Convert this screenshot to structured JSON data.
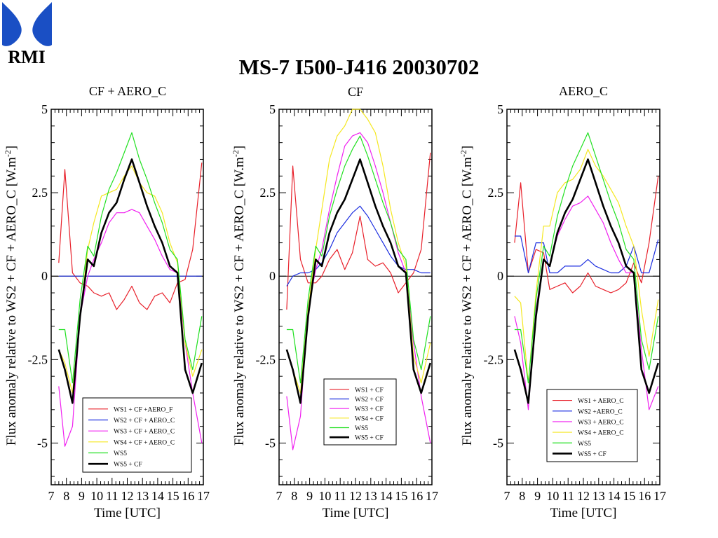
{
  "logo": {
    "text": "RMI",
    "color": "#1a4fc4"
  },
  "slide_title": "MS-7 I500-J416 20030702",
  "chart_data": [
    {
      "type": "line",
      "title": "CF + AERO_C",
      "xlabel": "Time [UTC]",
      "ylabel": "Flux anomaly relative to WS2 + CF + AERO_C [W.m",
      "ylabel_sup": "-2",
      "ylabel_close": "]",
      "xlim": [
        7,
        17
      ],
      "ylim": [
        -6.25,
        5
      ],
      "xticks": [
        7,
        8,
        9,
        10,
        11,
        12,
        13,
        14,
        15,
        16,
        17
      ],
      "yticks": [
        -5,
        -2.5,
        0,
        2.5,
        5
      ],
      "ytick_labels": [
        "-5",
        "-2.5",
        "0",
        "2.5",
        "5"
      ],
      "legend_position": "bottom",
      "x": [
        7.5,
        7.9,
        8.4,
        8.9,
        9.4,
        9.8,
        10.3,
        10.8,
        11.3,
        11.8,
        12.3,
        12.8,
        13.3,
        13.8,
        14.3,
        14.8,
        15.3,
        15.8,
        16.3,
        16.9
      ],
      "series": [
        {
          "name": "WS1 + CF +AERO_F",
          "color": "#e8202a",
          "width": 1.2,
          "values": [
            0.4,
            3.2,
            0.1,
            -0.2,
            -0.3,
            -0.5,
            -0.6,
            -0.5,
            -1.0,
            -0.7,
            -0.3,
            -0.8,
            -1.0,
            -0.6,
            -0.5,
            -0.8,
            -0.2,
            -0.1,
            0.8,
            3.4
          ]
        },
        {
          "name": "WS2 + CF + AERO_C",
          "color": "#1c2ee0",
          "width": 1.2,
          "values": [
            0,
            0,
            0,
            0,
            0,
            0,
            0,
            0,
            0,
            0,
            0,
            0,
            0,
            0,
            0,
            0,
            0,
            0,
            0,
            0
          ]
        },
        {
          "name": "WS3 + CF + AERO_C",
          "color": "#f020f0",
          "width": 1.2,
          "values": [
            -3.3,
            -5.1,
            -4.5,
            -1.2,
            0.0,
            0.5,
            1.0,
            1.6,
            1.9,
            1.9,
            2.0,
            1.9,
            1.5,
            1.1,
            0.6,
            0.2,
            0.1,
            -2.0,
            -3.5,
            -5.0
          ]
        },
        {
          "name": "WS4 + CF + AERO_C",
          "color": "#f5e820",
          "width": 1.2,
          "values": [
            -2.2,
            -2.6,
            -3.5,
            -1.2,
            0.8,
            1.6,
            2.4,
            2.5,
            2.6,
            3.0,
            3.3,
            2.8,
            2.5,
            2.4,
            1.9,
            1.0,
            0.4,
            -2.0,
            -3.0,
            -2.2
          ]
        },
        {
          "name": "WS5",
          "color": "#20e020",
          "width": 1.2,
          "values": [
            -1.6,
            -1.6,
            -3.2,
            -0.7,
            0.9,
            0.6,
            1.8,
            2.6,
            3.1,
            3.7,
            4.3,
            3.5,
            2.9,
            2.2,
            1.6,
            0.8,
            0.5,
            -1.9,
            -2.8,
            -1.2
          ]
        },
        {
          "name": "WS5 + CF",
          "color": "#000000",
          "width": 2.6,
          "values": [
            -2.2,
            -2.8,
            -3.8,
            -1.2,
            0.5,
            0.3,
            1.3,
            1.9,
            2.2,
            2.9,
            3.5,
            2.8,
            2.1,
            1.5,
            1.0,
            0.3,
            0.1,
            -2.8,
            -3.5,
            -2.6
          ]
        }
      ]
    },
    {
      "type": "line",
      "title": "CF",
      "xlabel": "Time [UTC]",
      "ylabel": "Flux anomaly relative to WS2 + CF + AERO_C [W.m",
      "ylabel_sup": "-2",
      "ylabel_close": "]",
      "xlim": [
        7,
        17
      ],
      "ylim": [
        -6.25,
        5
      ],
      "xticks": [
        7,
        8,
        9,
        10,
        11,
        12,
        13,
        14,
        15,
        16,
        17
      ],
      "yticks": [
        -5,
        -2.5,
        0,
        2.5,
        5
      ],
      "ytick_labels": [
        "-5",
        "-2.5",
        "0",
        "2.5",
        "5"
      ],
      "legend_position": "bottom-right",
      "x": [
        7.5,
        7.9,
        8.4,
        8.9,
        9.4,
        9.8,
        10.3,
        10.8,
        11.3,
        11.8,
        12.3,
        12.8,
        13.3,
        13.8,
        14.3,
        14.8,
        15.3,
        15.8,
        16.3,
        16.9
      ],
      "series": [
        {
          "name": "WS1 + CF",
          "color": "#e8202a",
          "width": 1.2,
          "values": [
            -1.0,
            3.3,
            0.5,
            -0.2,
            -0.2,
            0.0,
            0.5,
            0.8,
            0.2,
            0.7,
            1.8,
            0.5,
            0.3,
            0.4,
            0.1,
            -0.5,
            -0.2,
            0.1,
            0.8,
            3.7
          ]
        },
        {
          "name": "WS2 + CF",
          "color": "#1c2ee0",
          "width": 1.2,
          "values": [
            -0.3,
            0.0,
            0.1,
            0.1,
            0.2,
            0.4,
            0.8,
            1.3,
            1.6,
            1.9,
            2.1,
            1.8,
            1.4,
            1.0,
            0.6,
            0.3,
            0.2,
            0.2,
            0.1,
            0.1
          ]
        },
        {
          "name": "WS3 + CF",
          "color": "#f020f0",
          "width": 1.2,
          "values": [
            -3.6,
            -5.2,
            -4.2,
            -1.0,
            0.2,
            0.8,
            2.0,
            3.0,
            3.9,
            4.2,
            4.3,
            4.0,
            3.3,
            2.5,
            1.6,
            0.7,
            0.1,
            -2.0,
            -3.6,
            -5.0
          ]
        },
        {
          "name": "WS4 + CF",
          "color": "#f5e820",
          "width": 1.2,
          "values": [
            -2.2,
            -2.8,
            -3.5,
            -1.0,
            0.8,
            2.0,
            3.5,
            4.2,
            4.5,
            5.0,
            5.0,
            4.7,
            4.3,
            3.3,
            2.0,
            1.0,
            0.3,
            -2.4,
            -3.2,
            -2.0
          ]
        },
        {
          "name": "WS5",
          "color": "#20e020",
          "width": 1.2,
          "values": [
            -1.6,
            -1.6,
            -3.2,
            -0.7,
            0.9,
            0.6,
            1.8,
            2.6,
            3.3,
            3.8,
            4.2,
            3.6,
            2.9,
            2.2,
            1.6,
            0.8,
            0.5,
            -1.9,
            -2.8,
            -1.2
          ]
        },
        {
          "name": "WS5 + CF",
          "color": "#000000",
          "width": 2.6,
          "values": [
            -2.2,
            -2.8,
            -3.8,
            -1.2,
            0.5,
            0.3,
            1.3,
            1.9,
            2.3,
            2.9,
            3.5,
            2.8,
            2.1,
            1.5,
            1.0,
            0.3,
            0.1,
            -2.8,
            -3.5,
            -2.6
          ]
        }
      ]
    },
    {
      "type": "line",
      "title": "AERO_C",
      "xlabel": "Time [UTC]",
      "ylabel": "Flux anomaly relative to WS2 + CF + AERO_C [W.m",
      "ylabel_sup": "-2",
      "ylabel_close": "]",
      "xlim": [
        7,
        17
      ],
      "ylim": [
        -6.25,
        5
      ],
      "xticks": [
        7,
        8,
        9,
        10,
        11,
        12,
        13,
        14,
        15,
        16,
        17
      ],
      "yticks": [
        -5,
        -2.5,
        0,
        2.5,
        5
      ],
      "ytick_labels": [
        "-5",
        "-2.5",
        "0",
        "2.5",
        "5"
      ],
      "legend_position": "bottom-right",
      "x": [
        7.5,
        7.9,
        8.4,
        8.9,
        9.4,
        9.8,
        10.3,
        10.8,
        11.3,
        11.8,
        12.3,
        12.8,
        13.3,
        13.8,
        14.3,
        14.8,
        15.3,
        15.8,
        16.3,
        16.9
      ],
      "series": [
        {
          "name": "WS1 + AERO_C",
          "color": "#e8202a",
          "width": 1.2,
          "values": [
            1.0,
            2.8,
            0.1,
            0.8,
            0.7,
            -0.4,
            -0.3,
            -0.2,
            -0.5,
            -0.3,
            0.1,
            -0.3,
            -0.4,
            -0.5,
            -0.4,
            -0.2,
            0.4,
            -0.2,
            1.0,
            3.0
          ]
        },
        {
          "name": "WS2 +AERO_C",
          "color": "#1c2ee0",
          "width": 1.2,
          "values": [
            1.2,
            1.2,
            0.1,
            1.0,
            1.0,
            0.1,
            0.1,
            0.3,
            0.3,
            0.3,
            0.5,
            0.3,
            0.2,
            0.1,
            0.1,
            0.3,
            0.9,
            0.1,
            0.1,
            1.1
          ]
        },
        {
          "name": "WS3 + AERO_C",
          "color": "#f020f0",
          "width": 1.2,
          "values": [
            -1.2,
            -2.0,
            -4.0,
            -1.0,
            0.5,
            0.3,
            1.2,
            1.7,
            2.1,
            2.2,
            2.4,
            2.0,
            1.6,
            1.0,
            0.5,
            0.1,
            0.1,
            -2.2,
            -4.0,
            -3.3
          ]
        },
        {
          "name": "WS4 + AERO_C",
          "color": "#f5e820",
          "width": 1.2,
          "values": [
            -0.6,
            -0.8,
            -3.2,
            -0.5,
            1.5,
            1.5,
            2.5,
            2.8,
            2.9,
            3.2,
            3.8,
            3.3,
            3.0,
            2.6,
            2.2,
            1.5,
            0.9,
            -1.0,
            -2.4,
            -0.7
          ]
        },
        {
          "name": "WS5",
          "color": "#20e020",
          "width": 1.2,
          "values": [
            -1.6,
            -1.6,
            -3.2,
            -0.7,
            0.9,
            0.6,
            1.8,
            2.6,
            3.3,
            3.8,
            4.3,
            3.6,
            2.9,
            2.2,
            1.6,
            0.8,
            0.5,
            -1.9,
            -2.8,
            -1.2
          ]
        },
        {
          "name": "WS5 + CF",
          "color": "#000000",
          "width": 2.6,
          "values": [
            -2.2,
            -2.8,
            -3.8,
            -1.2,
            0.5,
            0.3,
            1.3,
            1.9,
            2.3,
            2.9,
            3.5,
            2.8,
            2.1,
            1.5,
            1.0,
            0.3,
            0.1,
            -2.8,
            -3.5,
            -2.6
          ]
        }
      ]
    }
  ]
}
